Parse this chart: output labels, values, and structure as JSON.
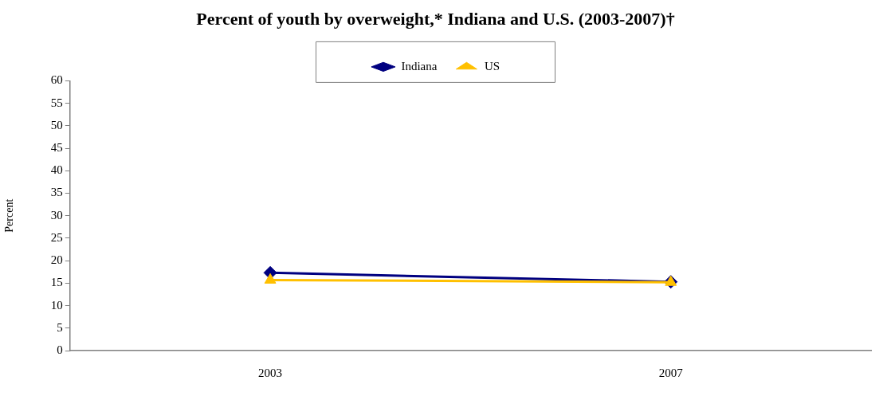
{
  "chart_data": {
    "type": "line",
    "title": "Percent of youth by overweight,* Indiana and U.S. (2003-2007)†",
    "ylabel": "Percent",
    "categories": [
      "2003",
      "2007"
    ],
    "series": [
      {
        "name": "Indiana",
        "color": "#000080",
        "marker": "diamond",
        "values": [
          17.3,
          15.3
        ]
      },
      {
        "name": "US",
        "color": "#ffc000",
        "marker": "triangle",
        "values": [
          15.7,
          15.2
        ]
      }
    ],
    "ylim": [
      0,
      60
    ],
    "yticks": [
      0,
      5,
      10,
      15,
      20,
      25,
      30,
      35,
      40,
      45,
      50,
      55,
      60
    ],
    "grid": false,
    "legend": "top"
  }
}
